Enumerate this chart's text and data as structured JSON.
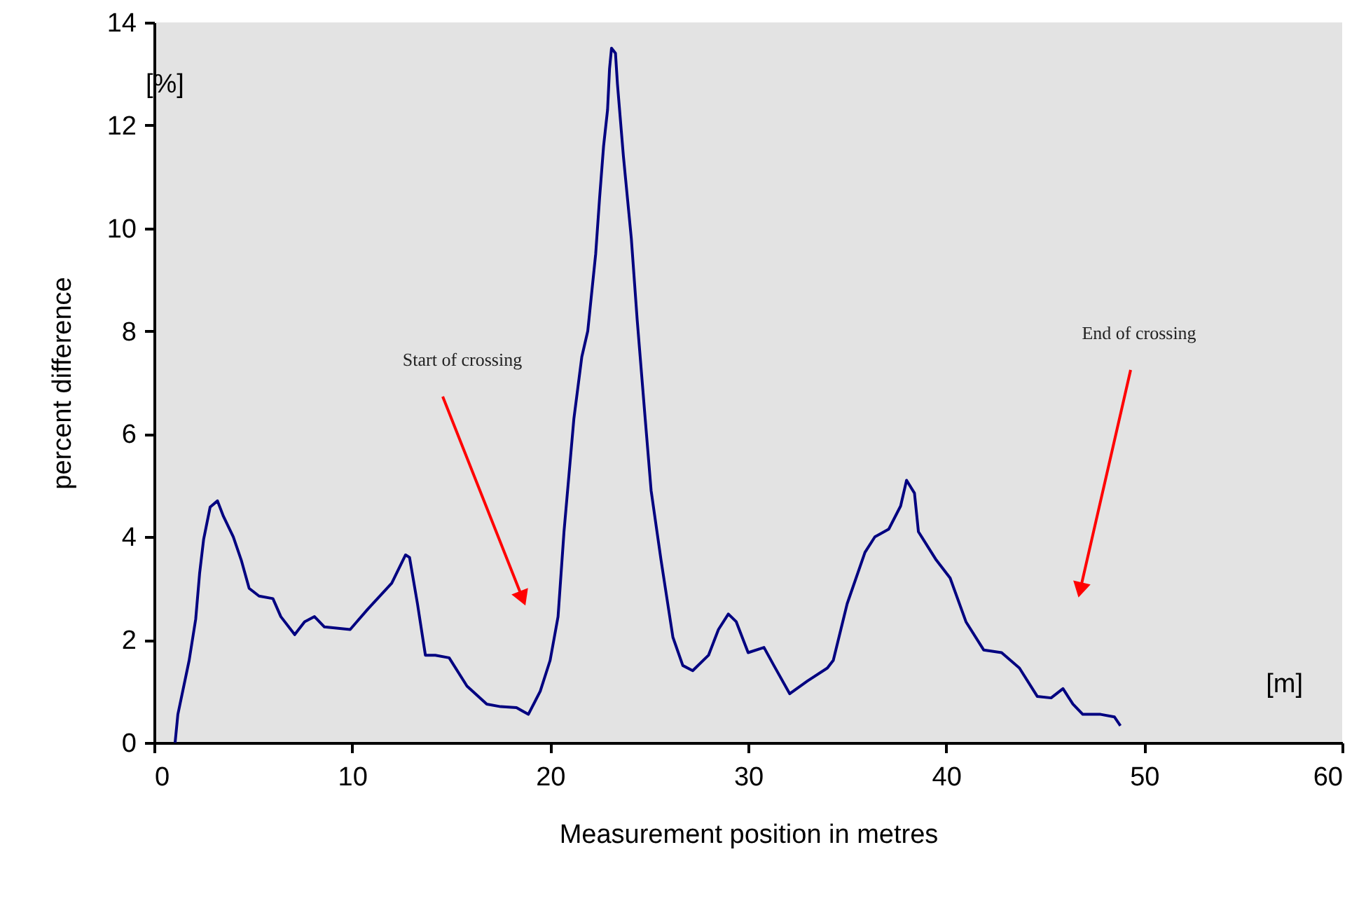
{
  "chart_data": {
    "type": "line",
    "xlabel": "Measurement position in metres",
    "ylabel": "percent difference",
    "xlim": [
      0,
      60
    ],
    "xticks": [
      0,
      10,
      20,
      30,
      40,
      50,
      60
    ],
    "ylim": [
      0,
      14
    ],
    "yticks": [
      0,
      2,
      4,
      6,
      8,
      10,
      12,
      14
    ],
    "grid": false,
    "marker": "none",
    "line_style": "solid",
    "annotations": [
      "[%]",
      "[m]",
      "Start of crossing",
      "End  of crossing"
    ],
    "series": [
      {
        "color": "#000080",
        "x": [
          1.06,
          1.2,
          1.77,
          2.1,
          2.3,
          2.5,
          2.83,
          3.2,
          3.5,
          4.0,
          4.4,
          4.8,
          5.3,
          6.0,
          6.4,
          7.1,
          7.6,
          8.1,
          8.6,
          9.9,
          10.8,
          12.0,
          12.7,
          12.9,
          13.3,
          13.7,
          14.2,
          14.9,
          15.8,
          16.8,
          17.5,
          18.3,
          18.9,
          19.5,
          20.0,
          20.4,
          20.7,
          21.2,
          21.6,
          21.9,
          22.3,
          22.5,
          22.7,
          22.9,
          23.0,
          23.1,
          23.3,
          23.4,
          23.7,
          24.1,
          24.4,
          24.8,
          25.1,
          25.6,
          26.2,
          26.7,
          27.2,
          28.0,
          28.5,
          29.0,
          29.4,
          30.0,
          30.8,
          31.3,
          32.1,
          33.0,
          34.0,
          34.3,
          35.0,
          35.9,
          36.4,
          37.1,
          37.7,
          38.0,
          38.4,
          38.6,
          39.5,
          40.2,
          41.0,
          41.9,
          42.8,
          43.7,
          44.6,
          45.3,
          45.9,
          46.4,
          46.9,
          47.8,
          48.5,
          48.8
        ],
        "values": [
          0,
          0.55,
          1.6,
          2.4,
          3.3,
          3.95,
          4.58,
          4.7,
          4.4,
          4.0,
          3.55,
          3.0,
          2.85,
          2.8,
          2.45,
          2.1,
          2.35,
          2.45,
          2.25,
          2.2,
          2.6,
          3.1,
          3.65,
          3.6,
          2.7,
          1.7,
          1.7,
          1.65,
          1.1,
          0.75,
          0.7,
          0.68,
          0.55,
          1.0,
          1.6,
          2.45,
          4.1,
          6.3,
          7.5,
          8.0,
          9.5,
          10.6,
          11.6,
          12.3,
          13.1,
          13.5,
          13.4,
          12.8,
          11.4,
          9.8,
          8.2,
          6.3,
          4.9,
          3.55,
          2.05,
          1.5,
          1.4,
          1.7,
          2.2,
          2.5,
          2.35,
          1.75,
          1.85,
          1.5,
          0.95,
          1.2,
          1.45,
          1.6,
          2.7,
          3.7,
          4.0,
          4.15,
          4.6,
          5.1,
          4.85,
          4.1,
          3.55,
          3.2,
          2.35,
          1.8,
          1.75,
          1.45,
          0.9,
          0.87,
          1.05,
          0.75,
          0.55,
          0.55,
          0.5,
          0.33
        ]
      }
    ]
  }
}
